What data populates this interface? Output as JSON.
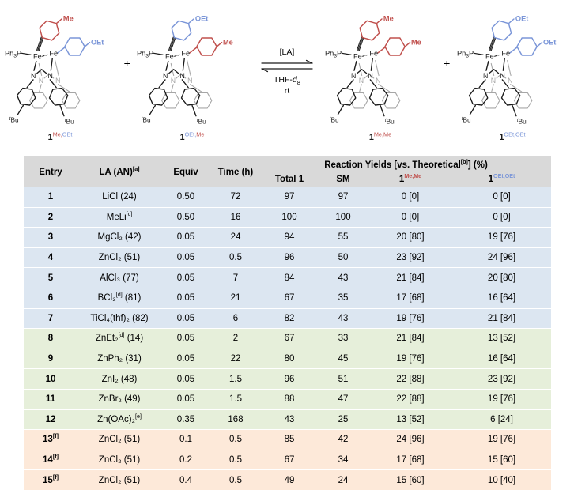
{
  "scheme": {
    "plus": "+",
    "arrow": {
      "top": "[LA]",
      "solvent_pre": "THF-",
      "solvent_it": "d",
      "solvent_sub": "8",
      "cond": "rt"
    },
    "atoms": {
      "phosphine_p1": "Ph",
      "phosphine_sub": "3",
      "phosphine_p2": "P",
      "metal": "Fe",
      "nitrogen": "N",
      "tbu_t": "t",
      "tbu_bu": "Bu"
    },
    "colors": {
      "red": "#c0504d",
      "blue": "#7b96d8",
      "black": "#1a1a1a",
      "gray": "#a6a6a6"
    },
    "structures": [
      {
        "name": "complex-1-Me-OEt",
        "top": "Me",
        "top_color": "red",
        "side": "OEt",
        "side_color": "blue",
        "label": {
          "base": "1",
          "sup": [
            {
              "t": "Me,",
              "c": "red"
            },
            {
              "t": "OEt",
              "c": "blue"
            }
          ]
        }
      },
      {
        "name": "complex-1-OEt-Me",
        "top": "OEt",
        "top_color": "blue",
        "side": "Me",
        "side_color": "red",
        "label": {
          "base": "1",
          "sup": [
            {
              "t": "OEt,",
              "c": "blue"
            },
            {
              "t": "Me",
              "c": "red"
            }
          ]
        }
      },
      {
        "name": "complex-1-Me-Me",
        "top": "Me",
        "top_color": "red",
        "side": "Me",
        "side_color": "red",
        "label": {
          "base": "1",
          "sup": [
            {
              "t": "Me,Me",
              "c": "red"
            }
          ]
        }
      },
      {
        "name": "complex-1-OEt-OEt",
        "top": "OEt",
        "top_color": "blue",
        "side": "OEt",
        "side_color": "blue",
        "label": {
          "base": "1",
          "sup": [
            {
              "t": "OEt,OEt",
              "c": "blue"
            }
          ]
        }
      }
    ]
  },
  "table": {
    "band_colors": {
      "header": "#d9d9d9",
      "blue": "#dce6f1",
      "green": "#e6efda",
      "orange": "#fde9d9"
    },
    "header": {
      "entry": "Entry",
      "la_pre": "LA (AN)",
      "la_sup": "[a]",
      "equiv": "Equiv",
      "time": "Time (h)",
      "yields_pre": "Reaction Yields [vs. Theoretical",
      "yields_sup": "[b]",
      "yields_post": "] (%)",
      "total_pre": "Total ",
      "total_bold": "1",
      "sm": "SM",
      "mm_base": "1",
      "mm_sup": "Me,Me",
      "oo_base": "1",
      "oo_sup": "OEt,OEt"
    },
    "rows": [
      {
        "entry": "1",
        "entry_sup": "",
        "la": "LiCl (24)",
        "la_sup": "",
        "la_post": "",
        "equiv": "0.50",
        "time": "72",
        "total": "97",
        "sm": "97",
        "mm": "0 [0]",
        "oo": "0 [0]",
        "band": "blue"
      },
      {
        "entry": "2",
        "entry_sup": "",
        "la": "MeLi",
        "la_sup": "[c]",
        "la_post": "",
        "equiv": "0.50",
        "time": "16",
        "total": "100",
        "sm": "100",
        "mm": "0 [0]",
        "oo": "0 [0]",
        "band": "blue"
      },
      {
        "entry": "3",
        "entry_sup": "",
        "la": "MgCl₂ (42)",
        "la_sup": "",
        "la_post": "",
        "equiv": "0.05",
        "time": "24",
        "total": "94",
        "sm": "55",
        "mm": "20 [80]",
        "oo": "19 [76]",
        "band": "blue"
      },
      {
        "entry": "4",
        "entry_sup": "",
        "la": "ZnCl₂ (51)",
        "la_sup": "",
        "la_post": "",
        "equiv": "0.05",
        "time": "0.5",
        "total": "96",
        "sm": "50",
        "mm": "23 [92]",
        "oo": "24 [96]",
        "band": "blue"
      },
      {
        "entry": "5",
        "entry_sup": "",
        "la": "AlCl₃ (77)",
        "la_sup": "",
        "la_post": "",
        "equiv": "0.05",
        "time": "7",
        "total": "84",
        "sm": "43",
        "mm": "21 [84]",
        "oo": "20 [80]",
        "band": "blue"
      },
      {
        "entry": "6",
        "entry_sup": "",
        "la": "BCl₃",
        "la_sup": "[d]",
        "la_post": " (81)",
        "equiv": "0.05",
        "time": "21",
        "total": "67",
        "sm": "35",
        "mm": "17 [68]",
        "oo": "16 [64]",
        "band": "blue"
      },
      {
        "entry": "7",
        "entry_sup": "",
        "la": "TiCl₄(thf)₂ (82)",
        "la_sup": "",
        "la_post": "",
        "equiv": "0.05",
        "time": "6",
        "total": "82",
        "sm": "43",
        "mm": "19 [76]",
        "oo": "21 [84]",
        "band": "blue"
      },
      {
        "entry": "8",
        "entry_sup": "",
        "la": "ZnEt₂",
        "la_sup": "[d]",
        "la_post": " (14)",
        "equiv": "0.05",
        "time": "2",
        "total": "67",
        "sm": "33",
        "mm": "21 [84]",
        "oo": "13 [52]",
        "band": "green"
      },
      {
        "entry": "9",
        "entry_sup": "",
        "la": "ZnPh₂ (31)",
        "la_sup": "",
        "la_post": "",
        "equiv": "0.05",
        "time": "22",
        "total": "80",
        "sm": "45",
        "mm": "19 [76]",
        "oo": "16 [64]",
        "band": "green"
      },
      {
        "entry": "10",
        "entry_sup": "",
        "la": "ZnI₂ (48)",
        "la_sup": "",
        "la_post": "",
        "equiv": "0.05",
        "time": "1.5",
        "total": "96",
        "sm": "51",
        "mm": "22 [88]",
        "oo": "23 [92]",
        "band": "green"
      },
      {
        "entry": "11",
        "entry_sup": "",
        "la": "ZnBr₂ (49)",
        "la_sup": "",
        "la_post": "",
        "equiv": "0.05",
        "time": "1.5",
        "total": "88",
        "sm": "47",
        "mm": "22 [88]",
        "oo": "19 [76]",
        "band": "green"
      },
      {
        "entry": "12",
        "entry_sup": "",
        "la": "Zn(OAc)₂",
        "la_sup": "[e]",
        "la_post": "",
        "equiv": "0.35",
        "time": "168",
        "total": "43",
        "sm": "25",
        "mm": "13 [52]",
        "oo": "6 [24]",
        "band": "green"
      },
      {
        "entry": "13",
        "entry_sup": "[f]",
        "la": "ZnCl₂ (51)",
        "la_sup": "",
        "la_post": "",
        "equiv": "0.1",
        "time": "0.5",
        "total": "85",
        "sm": "42",
        "mm": "24 [96]",
        "oo": "19 [76]",
        "band": "orange"
      },
      {
        "entry": "14",
        "entry_sup": "[f]",
        "la": "ZnCl₂ (51)",
        "la_sup": "",
        "la_post": "",
        "equiv": "0.2",
        "time": "0.5",
        "total": "67",
        "sm": "34",
        "mm": "17 [68]",
        "oo": "15 [60]",
        "band": "orange"
      },
      {
        "entry": "15",
        "entry_sup": "[f]",
        "la": "ZnCl₂ (51)",
        "la_sup": "",
        "la_post": "",
        "equiv": "0.4",
        "time": "0.5",
        "total": "49",
        "sm": "24",
        "mm": "15 [60]",
        "oo": "10 [40]",
        "band": "orange"
      }
    ]
  }
}
